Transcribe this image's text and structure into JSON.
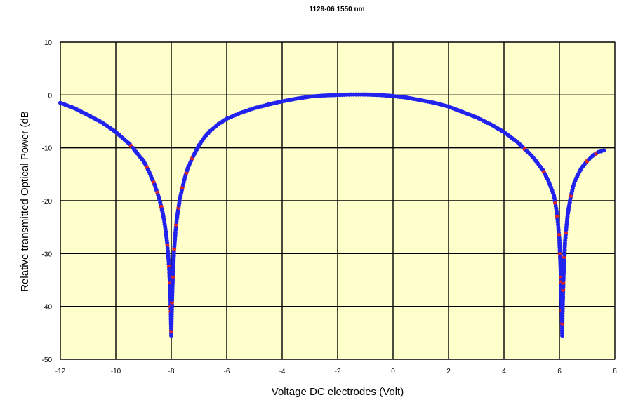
{
  "chart_data": {
    "type": "scatter",
    "title": "1129-06 1550 nm",
    "xlabel": "Voltage DC electrodes (Volt)",
    "ylabel": "Relative transmitted Optical Power (dB",
    "xlim": [
      -12,
      8
    ],
    "ylim": [
      -50,
      10
    ],
    "xticks": [
      -12,
      -10,
      -8,
      -6,
      -4,
      -2,
      0,
      2,
      4,
      6,
      8
    ],
    "yticks": [
      -50,
      -40,
      -30,
      -20,
      -10,
      0,
      10
    ],
    "xtick_labels": [
      "-12",
      "-10",
      "-8",
      "-6",
      "-4",
      "-2",
      "0",
      "2",
      "4",
      "6",
      "8"
    ],
    "ytick_labels": [
      "-50",
      "-40",
      "-30",
      "-20",
      "-10",
      "0",
      "10"
    ],
    "grid": true,
    "plot_background": "#ffffcc",
    "series": [
      {
        "color": "#2222ee",
        "marker_accent": "#dd2222",
        "x": [
          -12.0,
          -11.5,
          -11.0,
          -10.5,
          -10.0,
          -9.5,
          -9.0,
          -8.8,
          -8.6,
          -8.5,
          -8.4,
          -8.3,
          -8.25,
          -8.2,
          -8.15,
          -8.1,
          -8.07,
          -8.04,
          -8.02,
          -8.0,
          -7.98,
          -7.96,
          -7.93,
          -7.9,
          -7.85,
          -7.8,
          -7.7,
          -7.6,
          -7.5,
          -7.4,
          -7.2,
          -7.0,
          -6.8,
          -6.6,
          -6.3,
          -6.0,
          -5.5,
          -5.0,
          -4.5,
          -4.0,
          -3.5,
          -3.0,
          -2.5,
          -2.0,
          -1.5,
          -1.0,
          -0.5,
          0.0,
          0.5,
          1.0,
          1.5,
          2.0,
          2.5,
          3.0,
          3.5,
          4.0,
          4.5,
          5.0,
          5.2,
          5.4,
          5.6,
          5.7,
          5.8,
          5.85,
          5.9,
          5.95,
          6.0,
          6.03,
          6.06,
          6.08,
          6.1,
          6.12,
          6.14,
          6.17,
          6.2,
          6.25,
          6.3,
          6.4,
          6.5,
          6.6,
          6.8,
          7.0,
          7.2,
          7.4,
          7.6
        ],
        "y": [
          -1.5,
          -2.5,
          -3.8,
          -5.2,
          -7.0,
          -9.3,
          -12.5,
          -14.5,
          -17.0,
          -18.5,
          -20.3,
          -22.5,
          -24.0,
          -25.8,
          -28.0,
          -31.0,
          -33.5,
          -37.0,
          -41.0,
          -45.5,
          -41.0,
          -37.0,
          -33.0,
          -29.5,
          -26.0,
          -23.5,
          -20.0,
          -17.5,
          -15.5,
          -13.8,
          -11.5,
          -9.5,
          -8.0,
          -6.8,
          -5.5,
          -4.5,
          -3.4,
          -2.5,
          -1.8,
          -1.2,
          -0.7,
          -0.3,
          -0.1,
          0.0,
          0.1,
          0.1,
          0.0,
          -0.2,
          -0.5,
          -1.0,
          -1.5,
          -2.2,
          -3.2,
          -4.2,
          -5.5,
          -7.0,
          -9.0,
          -11.5,
          -12.8,
          -14.2,
          -16.2,
          -17.5,
          -19.0,
          -20.5,
          -22.0,
          -24.5,
          -27.5,
          -31.0,
          -35.0,
          -39.5,
          -45.5,
          -40.0,
          -35.5,
          -31.5,
          -28.0,
          -25.0,
          -22.5,
          -19.5,
          -17.2,
          -15.8,
          -13.8,
          -12.5,
          -11.5,
          -10.8,
          -10.5
        ]
      }
    ]
  }
}
